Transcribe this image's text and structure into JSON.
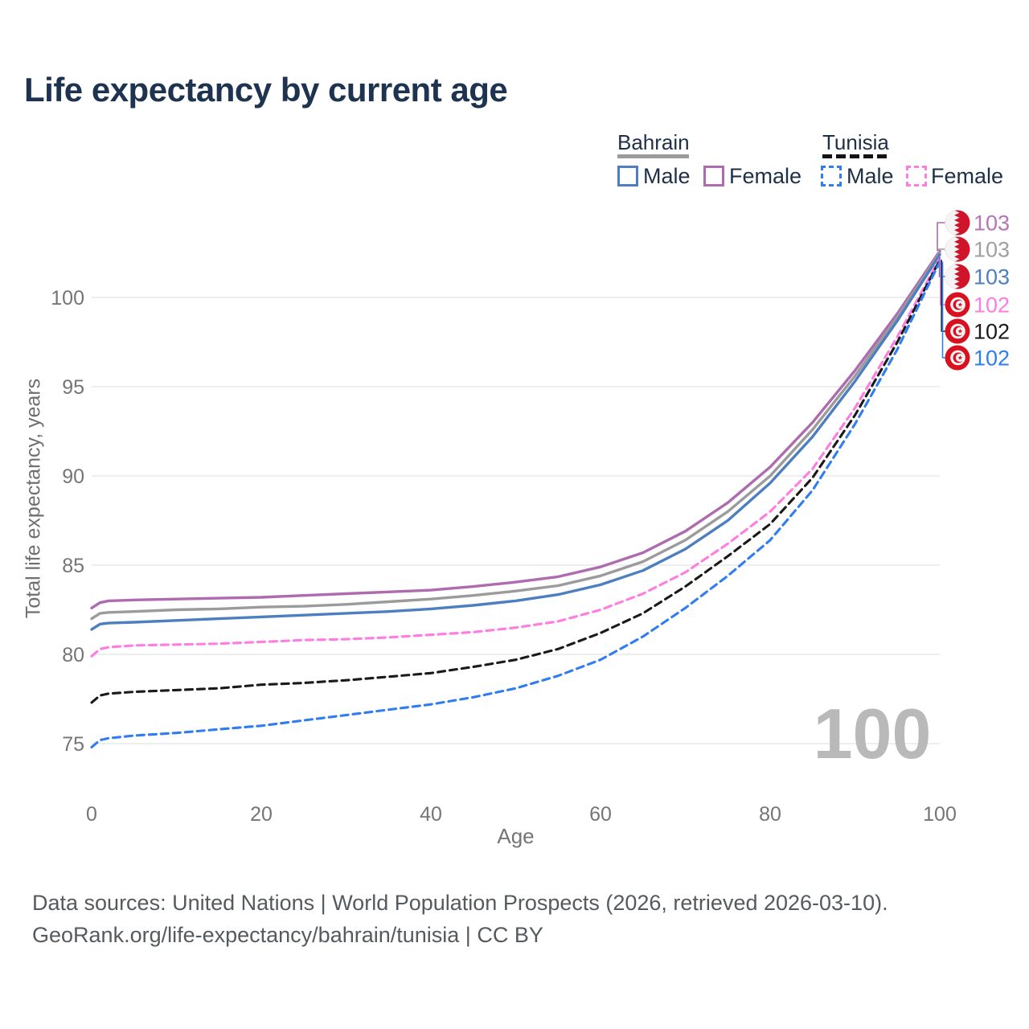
{
  "title": "Life expectancy by current age",
  "legend": {
    "groups": [
      {
        "country": "Bahrain",
        "line_style": "solid",
        "line_color": "#9b9b9b",
        "items": [
          {
            "label": "Male",
            "color": "#4d7fc0"
          },
          {
            "label": "Female",
            "color": "#ae6bb0"
          }
        ]
      },
      {
        "country": "Tunisia",
        "line_style": "dashed",
        "line_color": "#141414",
        "items": [
          {
            "label": "Male",
            "color": "#2f7df0"
          },
          {
            "label": "Female",
            "color": "#ff7ce0"
          }
        ]
      }
    ]
  },
  "chart_data": {
    "type": "line",
    "title": "Life expectancy by current age",
    "xlabel": "Age",
    "ylabel": "Total life expectancy, years",
    "xlim": [
      0,
      100
    ],
    "ylim": [
      73.5,
      104
    ],
    "xticks": [
      0,
      20,
      40,
      60,
      80,
      100
    ],
    "yticks": [
      75,
      80,
      85,
      90,
      95,
      100
    ],
    "grid": "horizontal",
    "legend_position": "top-right",
    "watermark": "100",
    "x": [
      0,
      1,
      2,
      5,
      10,
      15,
      20,
      25,
      30,
      35,
      40,
      45,
      50,
      55,
      60,
      65,
      70,
      75,
      80,
      85,
      90,
      95,
      100
    ],
    "series": [
      {
        "name": "Bahrain Female",
        "color": "#ae6bb0",
        "dash": "solid",
        "flag": "bahrain-flag",
        "end_label": "103",
        "end_label_color": "#b673b6",
        "values": [
          82.6,
          82.9,
          83.0,
          83.05,
          83.1,
          83.15,
          83.2,
          83.3,
          83.4,
          83.5,
          83.6,
          83.8,
          84.05,
          84.35,
          84.9,
          85.7,
          86.9,
          88.5,
          90.5,
          93.0,
          95.9,
          99.1,
          102.6
        ]
      },
      {
        "name": "Bahrain",
        "color": "#9b9b9b",
        "dash": "solid",
        "flag": "bahrain-flag",
        "end_label": "103",
        "end_label_color": "#a0a0a0",
        "values": [
          82.0,
          82.3,
          82.35,
          82.4,
          82.5,
          82.55,
          82.65,
          82.7,
          82.8,
          82.95,
          83.1,
          83.3,
          83.55,
          83.85,
          84.4,
          85.2,
          86.4,
          88.0,
          90.0,
          92.6,
          95.6,
          98.9,
          102.5
        ]
      },
      {
        "name": "Bahrain Male",
        "color": "#4d7fc0",
        "dash": "solid",
        "flag": "bahrain-flag",
        "end_label": "103",
        "end_label_color": "#4d7fc0",
        "values": [
          81.4,
          81.7,
          81.75,
          81.8,
          81.9,
          82.0,
          82.1,
          82.2,
          82.3,
          82.4,
          82.55,
          82.75,
          83.0,
          83.35,
          83.9,
          84.7,
          85.9,
          87.5,
          89.6,
          92.2,
          95.3,
          98.7,
          102.4
        ]
      },
      {
        "name": "Tunisia Female",
        "color": "#ff7ce0",
        "dash": "dashed",
        "flag": "tunisia-flag",
        "end_label": "102",
        "end_label_color": "#ff7ce0",
        "values": [
          79.9,
          80.3,
          80.4,
          80.5,
          80.55,
          80.6,
          80.7,
          80.8,
          80.85,
          80.95,
          81.1,
          81.25,
          81.5,
          81.85,
          82.5,
          83.4,
          84.6,
          86.2,
          88.0,
          90.4,
          93.8,
          97.8,
          102.2
        ]
      },
      {
        "name": "Tunisia",
        "color": "#1a1a1a",
        "dash": "dashed",
        "flag": "tunisia-flag",
        "end_label": "102",
        "end_label_color": "#1a1a1a",
        "values": [
          77.3,
          77.7,
          77.8,
          77.9,
          78.0,
          78.1,
          78.3,
          78.4,
          78.55,
          78.75,
          78.95,
          79.3,
          79.7,
          80.3,
          81.2,
          82.3,
          83.8,
          85.5,
          87.3,
          89.9,
          93.4,
          97.5,
          102.1
        ]
      },
      {
        "name": "Tunisia Male",
        "color": "#2f7df0",
        "dash": "dashed",
        "flag": "tunisia-flag",
        "end_label": "102",
        "end_label_color": "#2f7df0",
        "values": [
          74.8,
          75.2,
          75.3,
          75.45,
          75.6,
          75.8,
          76.0,
          76.3,
          76.6,
          76.9,
          77.2,
          77.6,
          78.1,
          78.8,
          79.7,
          81.0,
          82.6,
          84.4,
          86.4,
          89.2,
          92.9,
          97.1,
          102.0
        ]
      }
    ]
  },
  "footer": {
    "line1": "Data sources: United Nations | World Population Prospects (2026, retrieved 2026-03-10).",
    "line2": "GeoRank.org/life-expectancy/bahrain/tunisia | CC BY"
  }
}
